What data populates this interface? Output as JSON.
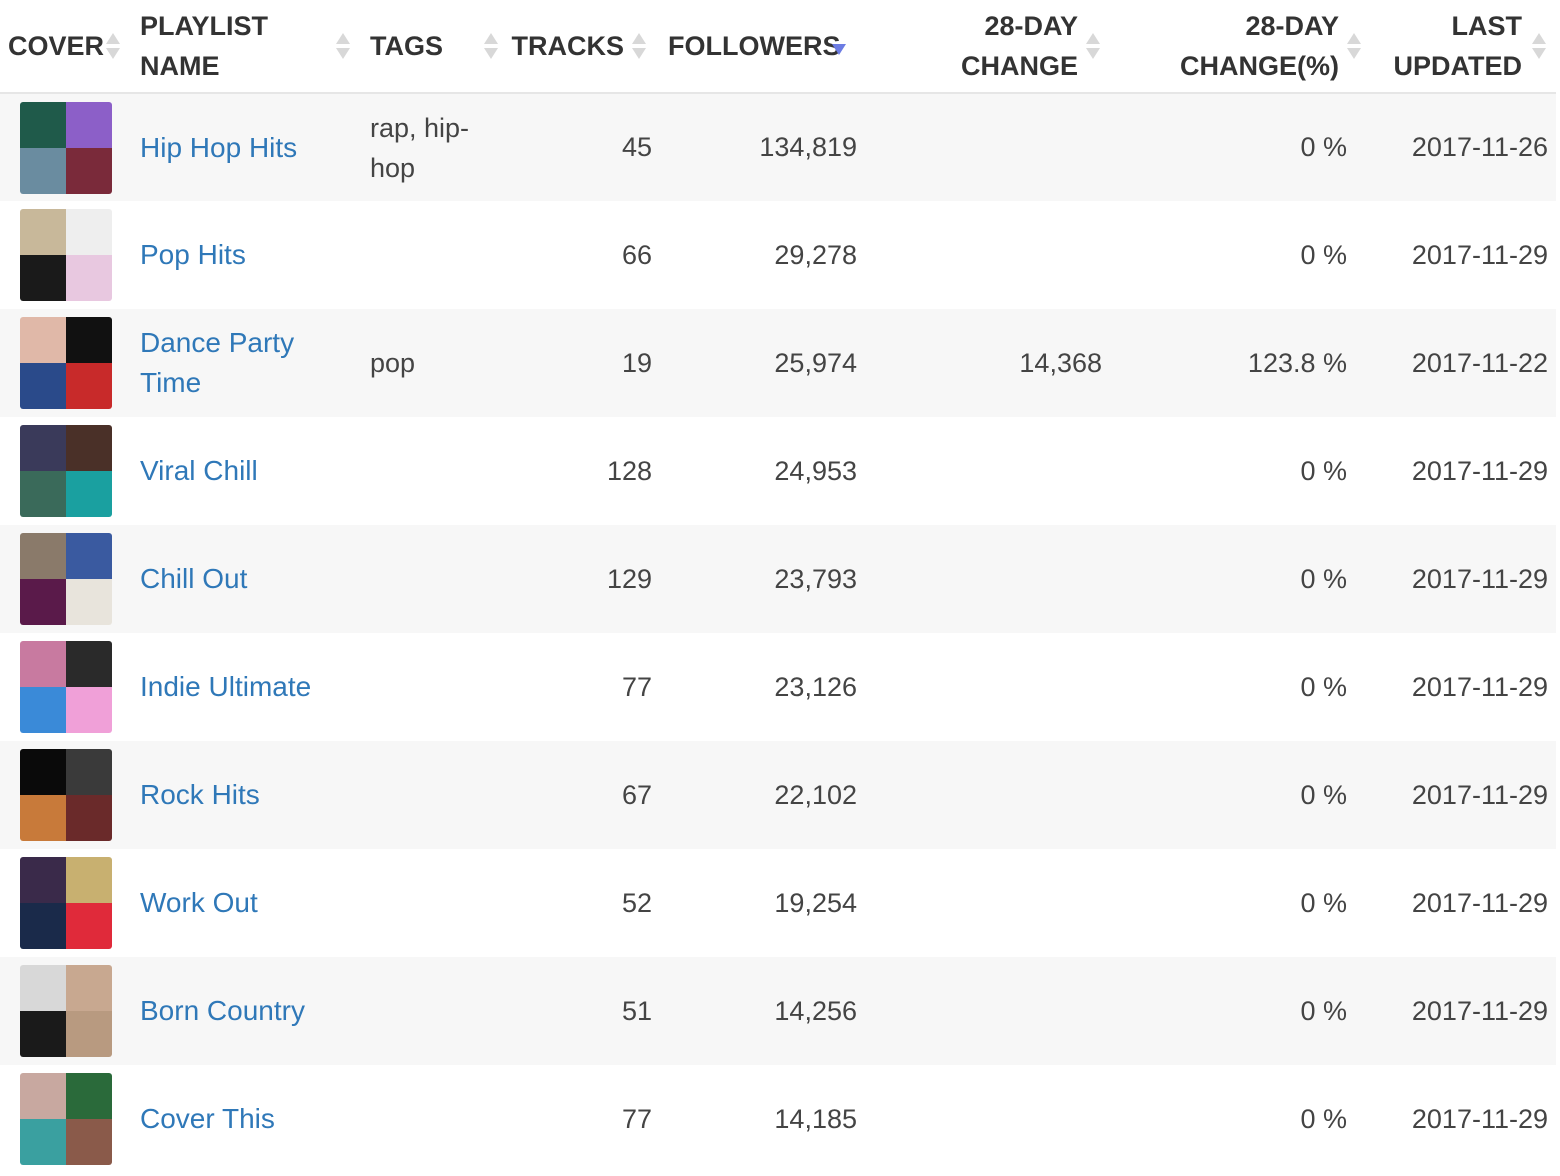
{
  "table": {
    "headers": {
      "cover": "COVER",
      "name": [
        "PLAYLIST",
        "NAME"
      ],
      "tags": "TAGS",
      "tracks": "TRACKS",
      "followers": "FOLLOWERS",
      "change": [
        "28-DAY",
        "CHANGE"
      ],
      "change_pct": [
        "28-DAY",
        "CHANGE(%)"
      ],
      "updated": [
        "LAST",
        "UPDATED"
      ]
    },
    "sorted_column": "followers",
    "sort_direction": "descending",
    "rows": [
      {
        "name": "Hip Hop Hits",
        "tags": "rap, hip-hop",
        "tracks": "45",
        "followers": "134,819",
        "change": "",
        "change_pct": "0 %",
        "updated": "2017-11-26",
        "cover_colors": [
          "#1f5a4a",
          "#8c5fc8",
          "#6a8ca0",
          "#7a2a3a"
        ]
      },
      {
        "name": "Pop Hits",
        "tags": "",
        "tracks": "66",
        "followers": "29,278",
        "change": "",
        "change_pct": "0 %",
        "updated": "2017-11-29",
        "cover_colors": [
          "#c8b89a",
          "#eeeeee",
          "#1a1a1a",
          "#e8c8e0"
        ]
      },
      {
        "name": "Dance Party Time",
        "tags": "pop",
        "tracks": "19",
        "followers": "25,974",
        "change": "14,368",
        "change_pct": "123.8 %",
        "updated": "2017-11-22",
        "cover_colors": [
          "#e0b8a8",
          "#111111",
          "#2a4a8a",
          "#c82a2a"
        ]
      },
      {
        "name": "Viral Chill",
        "tags": "",
        "tracks": "128",
        "followers": "24,953",
        "change": "",
        "change_pct": "0 %",
        "updated": "2017-11-29",
        "cover_colors": [
          "#3a3a5a",
          "#4a3028",
          "#3a6a5a",
          "#1aa0a0"
        ]
      },
      {
        "name": "Chill Out",
        "tags": "",
        "tracks": "129",
        "followers": "23,793",
        "change": "",
        "change_pct": "0 %",
        "updated": "2017-11-29",
        "cover_colors": [
          "#8a7a6a",
          "#3a5aa0",
          "#5a1a4a",
          "#e8e4dc"
        ]
      },
      {
        "name": "Indie Ultimate",
        "tags": "",
        "tracks": "77",
        "followers": "23,126",
        "change": "",
        "change_pct": "0 %",
        "updated": "2017-11-29",
        "cover_colors": [
          "#c87aa0",
          "#2a2a2a",
          "#3a8ad8",
          "#f0a0d8"
        ]
      },
      {
        "name": "Rock Hits",
        "tags": "",
        "tracks": "67",
        "followers": "22,102",
        "change": "",
        "change_pct": "0 %",
        "updated": "2017-11-29",
        "cover_colors": [
          "#0a0a0a",
          "#3a3a3a",
          "#c87a3a",
          "#6a2a2a"
        ]
      },
      {
        "name": "Work Out",
        "tags": "",
        "tracks": "52",
        "followers": "19,254",
        "change": "",
        "change_pct": "0 %",
        "updated": "2017-11-29",
        "cover_colors": [
          "#3a2a4a",
          "#c8b070",
          "#1a2a4a",
          "#e02a3a"
        ]
      },
      {
        "name": "Born Country",
        "tags": "",
        "tracks": "51",
        "followers": "14,256",
        "change": "",
        "change_pct": "0 %",
        "updated": "2017-11-29",
        "cover_colors": [
          "#d8d8d8",
          "#c8a890",
          "#1a1a1a",
          "#b89a80"
        ]
      },
      {
        "name": "Cover This",
        "tags": "",
        "tracks": "77",
        "followers": "14,185",
        "change": "",
        "change_pct": "0 %",
        "updated": "2017-11-29",
        "cover_colors": [
          "#c8a8a0",
          "#2a6a3a",
          "#3aa0a0",
          "#8a5a4a"
        ]
      }
    ]
  },
  "colors": {
    "link": "#2f78b8",
    "sort_active": "#6c7ce3",
    "sort_inactive": "#d8d8d8",
    "stripe": "#f7f7f7"
  }
}
